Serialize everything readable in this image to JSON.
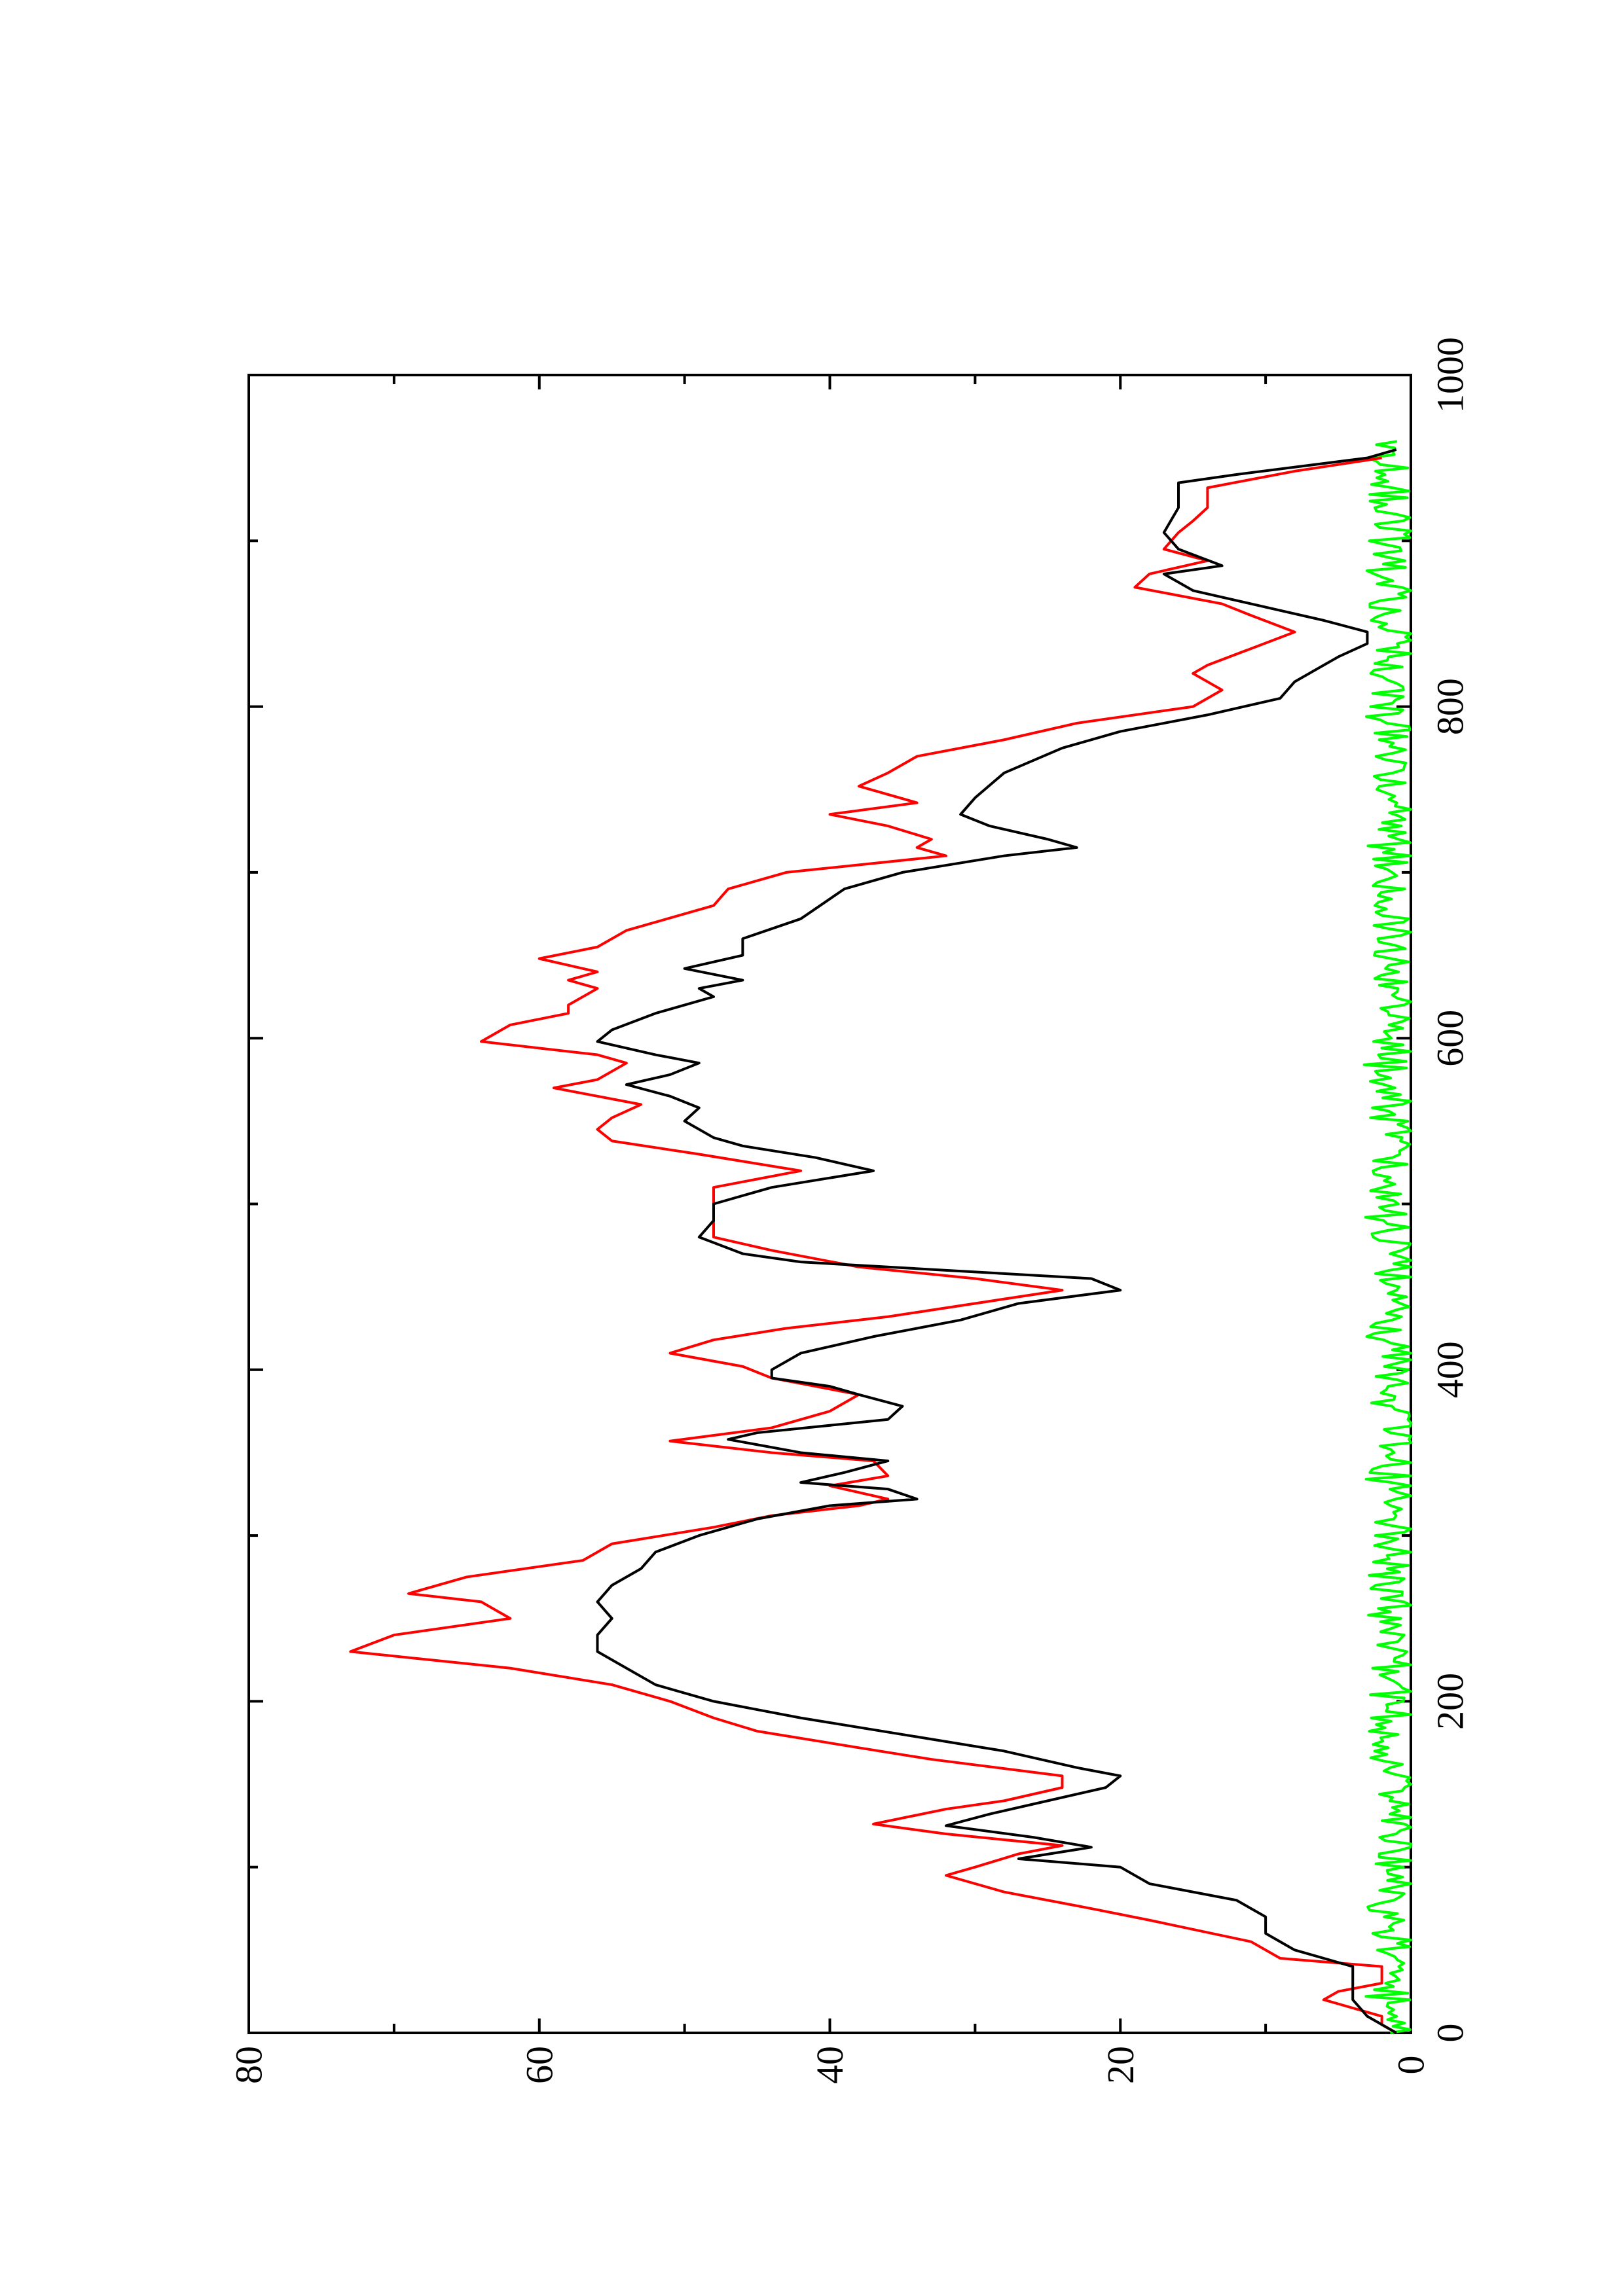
{
  "chart_data": {
    "type": "line",
    "title": "",
    "xlabel": "",
    "ylabel": "",
    "xlim": [
      0,
      1000
    ],
    "ylim": [
      0,
      80
    ],
    "x_ticks": [
      "0",
      "200",
      "400",
      "600",
      "800",
      "1000"
    ],
    "y_ticks": [
      "0",
      "20",
      "40",
      "60",
      "80"
    ],
    "orientation": "rotated 90 degrees counter-clockwise",
    "grid": false,
    "legend": "none",
    "series": [
      {
        "color": "#000000",
        "points": [
          [
            0,
            1
          ],
          [
            10,
            3
          ],
          [
            20,
            4
          ],
          [
            30,
            4
          ],
          [
            40,
            4
          ],
          [
            50,
            8
          ],
          [
            60,
            10
          ],
          [
            70,
            10
          ],
          [
            80,
            12
          ],
          [
            90,
            18
          ],
          [
            100,
            20
          ],
          [
            105,
            27
          ],
          [
            112,
            22
          ],
          [
            118,
            26
          ],
          [
            125,
            32
          ],
          [
            132,
            29
          ],
          [
            140,
            25
          ],
          [
            148,
            21
          ],
          [
            155,
            20
          ],
          [
            160,
            23
          ],
          [
            170,
            28
          ],
          [
            180,
            35
          ],
          [
            190,
            42
          ],
          [
            200,
            48
          ],
          [
            210,
            52
          ],
          [
            220,
            54
          ],
          [
            230,
            56
          ],
          [
            240,
            56
          ],
          [
            250,
            55
          ],
          [
            260,
            56
          ],
          [
            270,
            55
          ],
          [
            280,
            53
          ],
          [
            290,
            52
          ],
          [
            300,
            49
          ],
          [
            310,
            45
          ],
          [
            318,
            40
          ],
          [
            322,
            34
          ],
          [
            328,
            36
          ],
          [
            332,
            42
          ],
          [
            338,
            39
          ],
          [
            345,
            36
          ],
          [
            350,
            42
          ],
          [
            358,
            47
          ],
          [
            362,
            45
          ],
          [
            370,
            36
          ],
          [
            378,
            35
          ],
          [
            385,
            38
          ],
          [
            390,
            40
          ],
          [
            395,
            44
          ],
          [
            400,
            44
          ],
          [
            410,
            42
          ],
          [
            420,
            37
          ],
          [
            430,
            31
          ],
          [
            440,
            27
          ],
          [
            448,
            20
          ],
          [
            455,
            22
          ],
          [
            460,
            32
          ],
          [
            465,
            42
          ],
          [
            470,
            46
          ],
          [
            480,
            49
          ],
          [
            490,
            48
          ],
          [
            500,
            48
          ],
          [
            510,
            44
          ],
          [
            520,
            37
          ],
          [
            528,
            41
          ],
          [
            535,
            46
          ],
          [
            540,
            48
          ],
          [
            550,
            50
          ],
          [
            558,
            49
          ],
          [
            565,
            51
          ],
          [
            572,
            54
          ],
          [
            578,
            51
          ],
          [
            585,
            49
          ],
          [
            590,
            52
          ],
          [
            598,
            56
          ],
          [
            605,
            55
          ],
          [
            615,
            52
          ],
          [
            625,
            48
          ],
          [
            630,
            49
          ],
          [
            635,
            46
          ],
          [
            642,
            50
          ],
          [
            650,
            46
          ],
          [
            660,
            46
          ],
          [
            672,
            42
          ],
          [
            690,
            39
          ],
          [
            700,
            35
          ],
          [
            710,
            28
          ],
          [
            715,
            23
          ],
          [
            720,
            25
          ],
          [
            728,
            29
          ],
          [
            735,
            31
          ],
          [
            745,
            30
          ],
          [
            760,
            28
          ],
          [
            775,
            24
          ],
          [
            785,
            20
          ],
          [
            790,
            17
          ],
          [
            795,
            14
          ],
          [
            805,
            9
          ],
          [
            815,
            8
          ],
          [
            825,
            6
          ],
          [
            830,
            5
          ],
          [
            838,
            3
          ],
          [
            845,
            3
          ],
          [
            852,
            6
          ],
          [
            862,
            11
          ],
          [
            870,
            15
          ],
          [
            880,
            17
          ],
          [
            885,
            13
          ],
          [
            895,
            16
          ],
          [
            905,
            17
          ],
          [
            920,
            16
          ],
          [
            935,
            16
          ],
          [
            940,
            12
          ],
          [
            950,
            3
          ],
          [
            955,
            1
          ]
        ]
      },
      {
        "color": "#ff0000",
        "points": [
          [
            0,
            1
          ],
          [
            5,
            2
          ],
          [
            10,
            2
          ],
          [
            15,
            4
          ],
          [
            20,
            6
          ],
          [
            25,
            5
          ],
          [
            30,
            2
          ],
          [
            40,
            2
          ],
          [
            45,
            9
          ],
          [
            55,
            11
          ],
          [
            68,
            18
          ],
          [
            75,
            22
          ],
          [
            85,
            28
          ],
          [
            95,
            32
          ],
          [
            100,
            30
          ],
          [
            108,
            27
          ],
          [
            113,
            24
          ],
          [
            120,
            32
          ],
          [
            126,
            37
          ],
          [
            135,
            32
          ],
          [
            140,
            28
          ],
          [
            148,
            24
          ],
          [
            155,
            24
          ],
          [
            165,
            33
          ],
          [
            172,
            38
          ],
          [
            182,
            45
          ],
          [
            190,
            48
          ],
          [
            200,
            51
          ],
          [
            210,
            55
          ],
          [
            220,
            62
          ],
          [
            230,
            73
          ],
          [
            240,
            70
          ],
          [
            250,
            62
          ],
          [
            260,
            64
          ],
          [
            265,
            69
          ],
          [
            275,
            65
          ],
          [
            285,
            57
          ],
          [
            295,
            55
          ],
          [
            305,
            48
          ],
          [
            312,
            44
          ],
          [
            318,
            38
          ],
          [
            322,
            36
          ],
          [
            330,
            40
          ],
          [
            336,
            36
          ],
          [
            345,
            37
          ],
          [
            350,
            44
          ],
          [
            357,
            51
          ],
          [
            365,
            44
          ],
          [
            375,
            40
          ],
          [
            385,
            38
          ],
          [
            395,
            44
          ],
          [
            402,
            46
          ],
          [
            410,
            51
          ],
          [
            418,
            48
          ],
          [
            425,
            43
          ],
          [
            432,
            36
          ],
          [
            440,
            30
          ],
          [
            448,
            24
          ],
          [
            455,
            30
          ],
          [
            462,
            38
          ],
          [
            472,
            44
          ],
          [
            480,
            48
          ],
          [
            490,
            48
          ],
          [
            500,
            48
          ],
          [
            510,
            48
          ],
          [
            520,
            42
          ],
          [
            530,
            49
          ],
          [
            538,
            55
          ],
          [
            545,
            56
          ],
          [
            552,
            55
          ],
          [
            560,
            53
          ],
          [
            570,
            59
          ],
          [
            575,
            56
          ],
          [
            585,
            54
          ],
          [
            590,
            56
          ],
          [
            598,
            64
          ],
          [
            608,
            62
          ],
          [
            615,
            58
          ],
          [
            620,
            58
          ],
          [
            630,
            56
          ],
          [
            635,
            58
          ],
          [
            640,
            56
          ],
          [
            648,
            60
          ],
          [
            655,
            56
          ],
          [
            665,
            54
          ],
          [
            680,
            48
          ],
          [
            690,
            47
          ],
          [
            700,
            43
          ],
          [
            710,
            32
          ],
          [
            715,
            34
          ],
          [
            720,
            33
          ],
          [
            728,
            36
          ],
          [
            735,
            40
          ],
          [
            742,
            34
          ],
          [
            752,
            38
          ],
          [
            760,
            36
          ],
          [
            770,
            34
          ],
          [
            780,
            28
          ],
          [
            790,
            23
          ],
          [
            800,
            15
          ],
          [
            810,
            13
          ],
          [
            820,
            15
          ],
          [
            825,
            14
          ],
          [
            835,
            11
          ],
          [
            845,
            8
          ],
          [
            855,
            11
          ],
          [
            862,
            13
          ],
          [
            872,
            19
          ],
          [
            880,
            18
          ],
          [
            888,
            14
          ],
          [
            895,
            17
          ],
          [
            905,
            16
          ],
          [
            912,
            15
          ],
          [
            920,
            14
          ],
          [
            932,
            14
          ],
          [
            942,
            8
          ],
          [
            950,
            2
          ]
        ]
      },
      {
        "color": "#00ff00",
        "noise_amplitude": 1.5,
        "level_range": [
          0,
          4
        ]
      }
    ]
  }
}
